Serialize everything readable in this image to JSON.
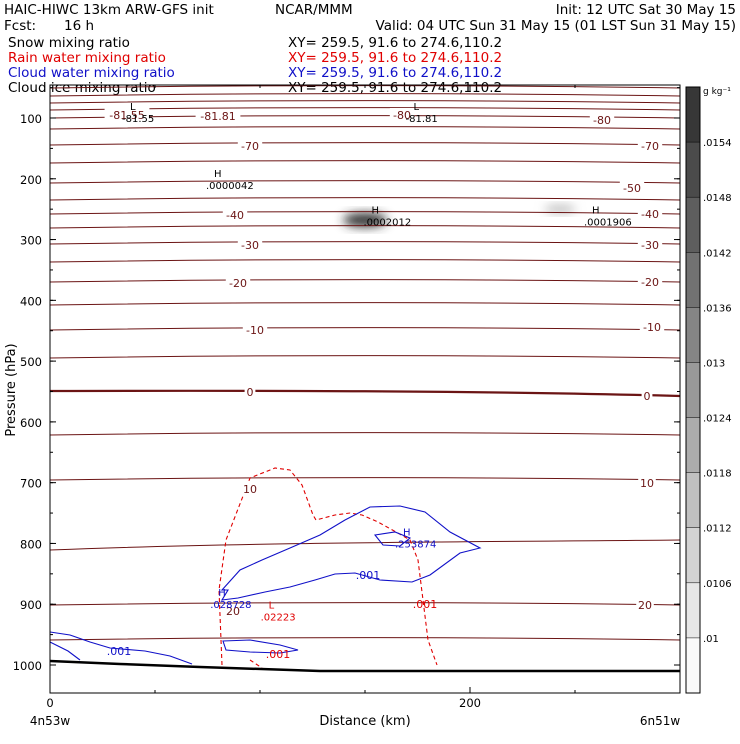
{
  "header": {
    "left1": "HAIC-HIWC 13km ARW-GFS init",
    "center1": "NCAR/MMM",
    "right1": "Init: 12 UTC Sat 30 May 15",
    "left2_label": "Fcst:",
    "left2_value": "16 h",
    "right2": "Valid: 04 UTC Sun 31 May 15 (01 LST Sun 31 May 15)",
    "fields": [
      {
        "name": "Snow mixing ratio",
        "xy": "XY= 259.5, 91.6 to 274.6,110.2",
        "color": "#000000"
      },
      {
        "name": "Rain water mixing ratio",
        "xy": "XY= 259.5, 91.6 to 274.6,110.2",
        "color": "#e00000"
      },
      {
        "name": "Cloud water mixing ratio",
        "xy": "XY= 259.5, 91.6 to 274.6,110.2",
        "color": "#1010c8"
      },
      {
        "name": "Cloud ice mixing ratio",
        "xy": "XY= 259.5, 91.6 to 274.6,110.2",
        "color": "#000000"
      }
    ]
  },
  "chart_data": {
    "type": "cross-section",
    "xlabel": "Distance (km)",
    "ylabel": "Pressure (hPa)",
    "xlim": [
      0,
      300
    ],
    "ylim": [
      1050,
      50
    ],
    "x_ticks": [
      0,
      200
    ],
    "y_ticks": [
      100,
      200,
      300,
      400,
      500,
      600,
      700,
      800,
      900,
      1000
    ],
    "endpoint_labels": {
      "left": "4n53w",
      "right": "6n51w"
    },
    "temperature_contours_label_values": [
      "-81.55",
      "-80",
      "-81.81",
      "-80",
      "-70",
      "-70",
      "-50",
      "-40",
      "-40",
      "-30",
      "-30",
      "-20",
      "-20",
      "-10",
      "-10",
      "0",
      "0",
      "10",
      "10",
      "20",
      "20"
    ],
    "extrema_labels": [
      {
        "mark": "L",
        "value": "-81.55",
        "x": 40,
        "p": 100
      },
      {
        "mark": "L",
        "value": "-81.81",
        "x": 175,
        "p": 100
      },
      {
        "mark": "H",
        "value": ".0000042",
        "x": 80,
        "p": 210
      },
      {
        "mark": "H",
        "value": ".0002012",
        "x": 155,
        "p": 270
      },
      {
        "mark": "H",
        "value": ".0001906",
        "x": 260,
        "p": 270
      },
      {
        "mark": "H",
        "value": ".253874",
        "x": 170,
        "p": 800
      },
      {
        "mark": "H",
        "value": ".028728",
        "x": 82,
        "p": 900
      },
      {
        "mark": "L",
        "value": ".02223",
        "x": 106,
        "p": 920
      }
    ],
    "contour_labels": [
      ".001",
      ".001",
      ".001",
      ".001"
    ],
    "colorbar": {
      "unit": "g kg⁻¹",
      "ticks": [
        ".0154",
        ".0148",
        ".0142",
        ".0136",
        ".013",
        ".0124",
        ".0118",
        ".0112",
        ".0106",
        ".01"
      ]
    },
    "grid": false,
    "legend": "none"
  }
}
